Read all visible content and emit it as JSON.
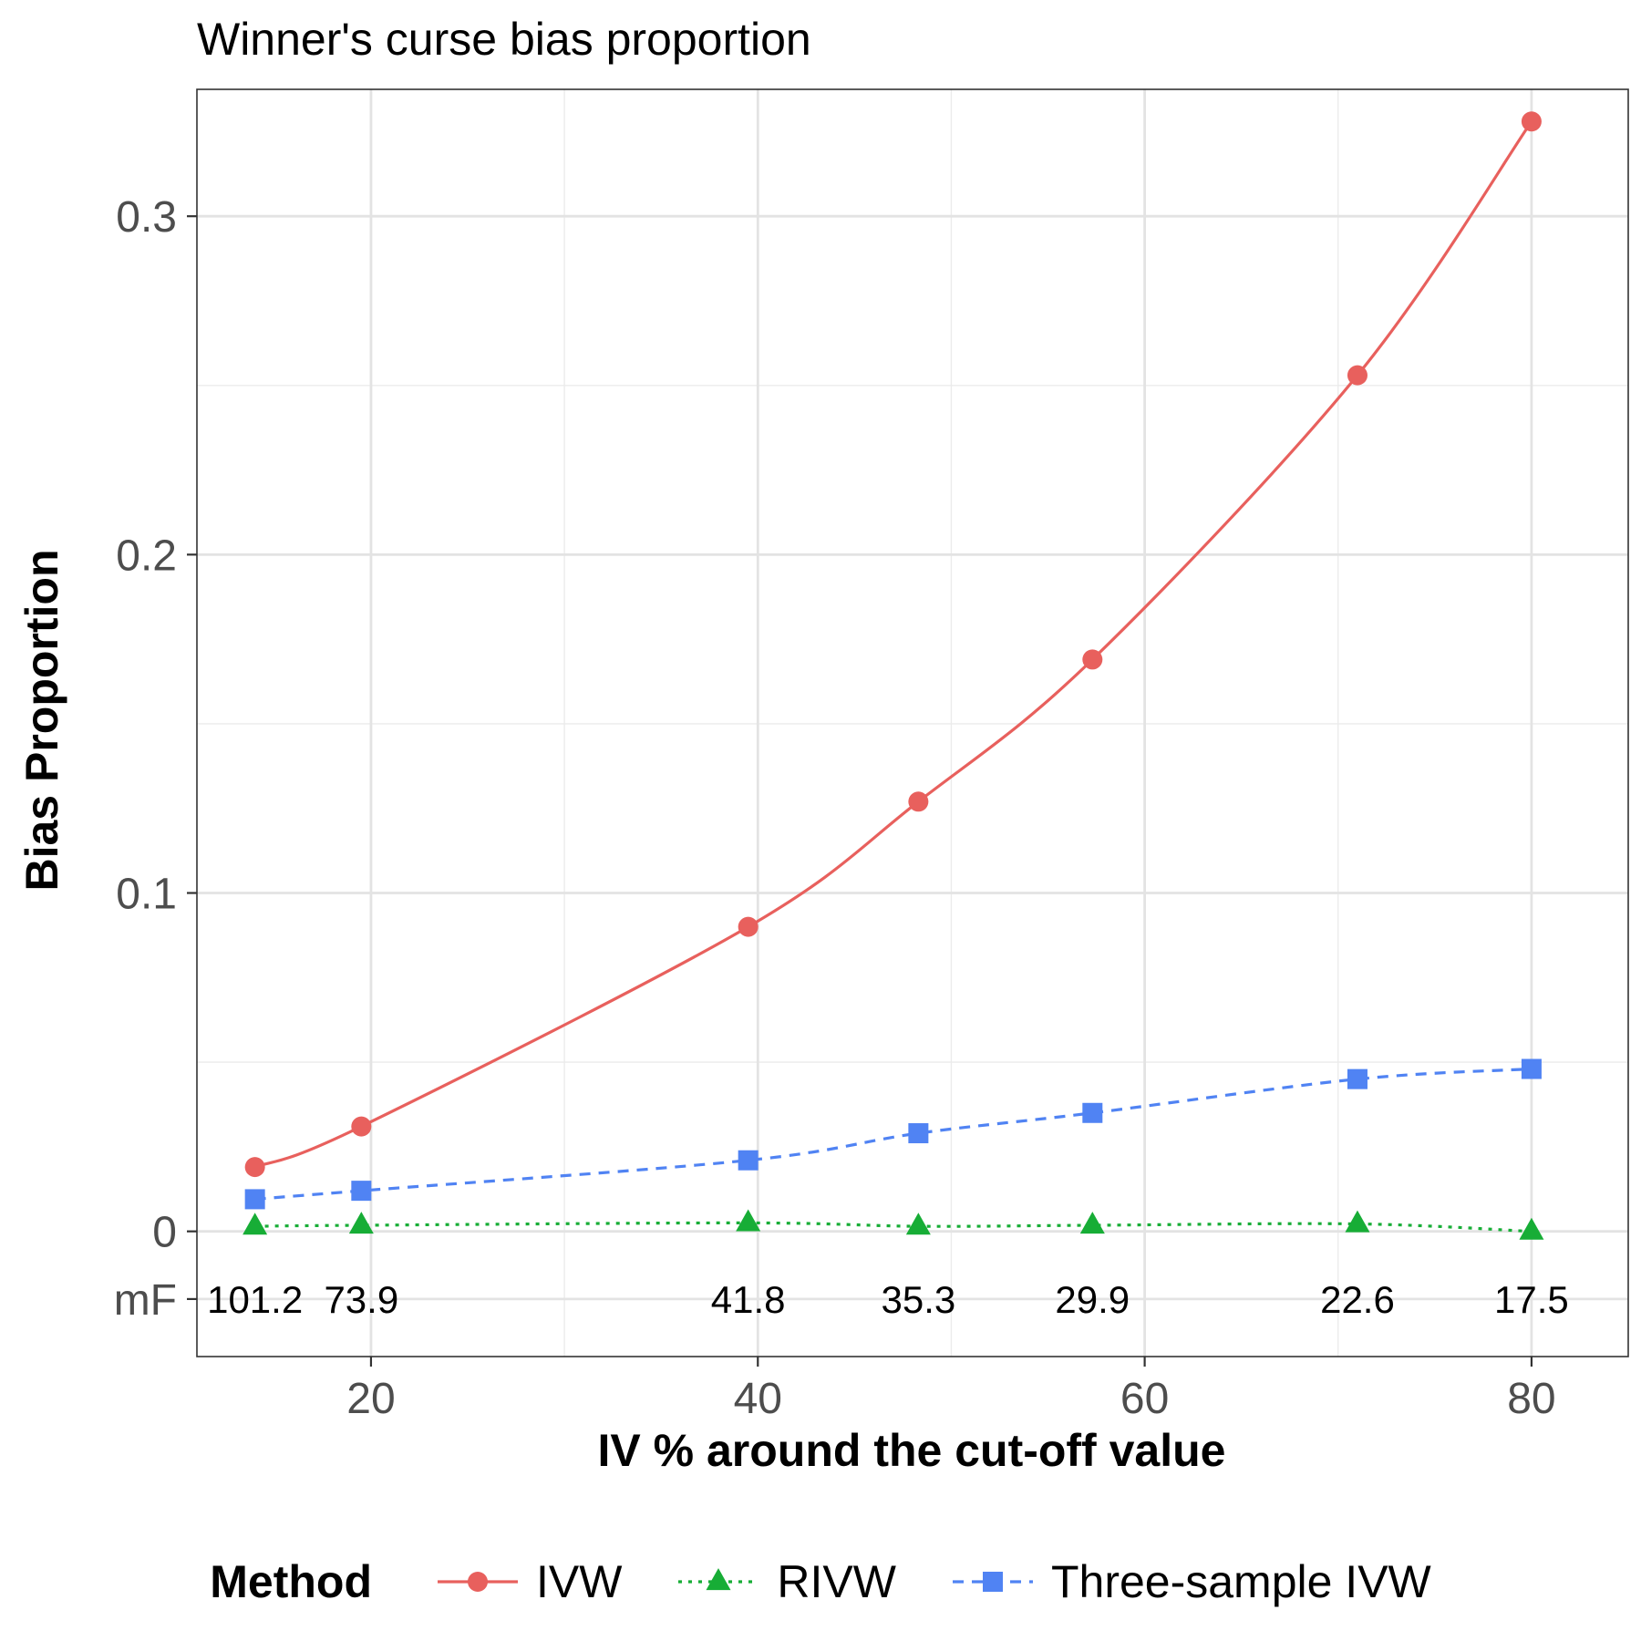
{
  "chart_data": {
    "type": "line",
    "title": "Winner's curse bias proportion",
    "xlabel": "IV % around the cut-off value",
    "ylabel": "Bias Proportion",
    "xlim": [
      11.0,
      85.0
    ],
    "ylim": [
      -0.037,
      0.3375
    ],
    "x_ticks": [
      20,
      40,
      60,
      80
    ],
    "y_ticks": [
      0,
      0.1,
      0.2,
      0.3
    ],
    "y_tick_labels": [
      "0",
      "0.1",
      "0.2",
      "0.3"
    ],
    "x": [
      14.0,
      19.5,
      39.5,
      48.3,
      57.3,
      71.0,
      80.0
    ],
    "series": [
      {
        "name": "IVW",
        "color": "#e8605d",
        "linestyle": "solid",
        "marker": "circle",
        "values": [
          0.019,
          0.031,
          0.09,
          0.127,
          0.169,
          0.253,
          0.328
        ]
      },
      {
        "name": "RIVW",
        "color": "#17ad36",
        "linestyle": "dotted",
        "marker": "triangle",
        "values": [
          0.0015,
          0.0018,
          0.0025,
          0.0015,
          0.0018,
          0.0022,
          0.0
        ]
      },
      {
        "name": "Three-sample IVW",
        "color": "#5083f3",
        "linestyle": "dashed",
        "marker": "square",
        "values": [
          0.0095,
          0.012,
          0.021,
          0.029,
          0.035,
          0.045,
          0.048
        ]
      }
    ],
    "mf_row": {
      "label": "mF",
      "y": -0.02,
      "values": [
        "101.2",
        "73.9",
        "41.8",
        "35.3",
        "29.9",
        "22.6",
        "17.5"
      ]
    },
    "legend": {
      "title": "Method",
      "placement": "bottom"
    },
    "grid": true
  }
}
